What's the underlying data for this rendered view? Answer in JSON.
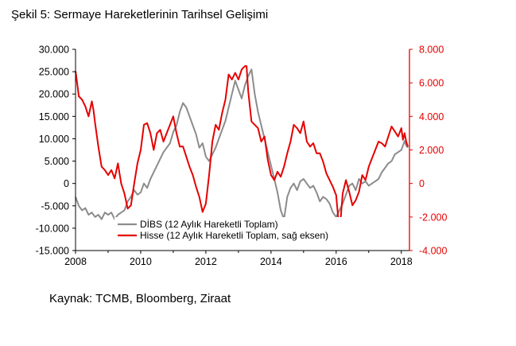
{
  "title": "Şekil 5: Sermaye Hareketlerinin Tarihsel Gelişimi",
  "source": "Kaynak: TCMB, Bloomberg, Ziraat",
  "chart_data": {
    "type": "line",
    "x_range": [
      2008,
      2018.25
    ],
    "x_ticks": [
      "2008",
      "2010",
      "2012",
      "2014",
      "2016",
      "2018"
    ],
    "x_tick_values": [
      2008,
      2010,
      2012,
      2014,
      2016,
      2018
    ],
    "y_left": {
      "range": [
        -15000,
        30000
      ],
      "ticks": [
        "30.000",
        "25.000",
        "20.000",
        "15.000",
        "10.000",
        "5.000",
        "0",
        "-5.000",
        "-10.000",
        "-15.000"
      ],
      "tick_values": [
        30000,
        25000,
        20000,
        15000,
        10000,
        5000,
        0,
        -5000,
        -10000,
        -15000
      ]
    },
    "y_right": {
      "range": [
        -4000,
        8000
      ],
      "ticks": [
        "8.000",
        "6.000",
        "4.000",
        "2.000",
        "0",
        "-2.000",
        "-4.000"
      ],
      "tick_values": [
        8000,
        6000,
        4000,
        2000,
        0,
        -2000,
        -4000
      ],
      "color": "#e60000"
    },
    "legend": {
      "placement": "bottom-center"
    },
    "series": [
      {
        "name": "DİBS (12 Aylık Hareketli Toplam)",
        "axis": "left",
        "color": "#8c8c8c",
        "points": [
          [
            2008.0,
            -3000
          ],
          [
            2008.1,
            -5000
          ],
          [
            2008.2,
            -6000
          ],
          [
            2008.3,
            -5500
          ],
          [
            2008.4,
            -7000
          ],
          [
            2008.5,
            -6500
          ],
          [
            2008.6,
            -7500
          ],
          [
            2008.7,
            -7000
          ],
          [
            2008.8,
            -8000
          ],
          [
            2008.9,
            -6500
          ],
          [
            2009.0,
            -7000
          ],
          [
            2009.1,
            -6500
          ],
          [
            2009.2,
            -8000
          ],
          [
            2009.3,
            -7000
          ],
          [
            2009.4,
            -6500
          ],
          [
            2009.5,
            -6000
          ],
          [
            2009.6,
            -4000
          ],
          [
            2009.7,
            -3000
          ],
          [
            2009.8,
            -1500
          ],
          [
            2009.9,
            -2500
          ],
          [
            2010.0,
            -2000
          ],
          [
            2010.1,
            0
          ],
          [
            2010.2,
            -1000
          ],
          [
            2010.3,
            1000
          ],
          [
            2010.4,
            2500
          ],
          [
            2010.5,
            4000
          ],
          [
            2010.6,
            5500
          ],
          [
            2010.7,
            7000
          ],
          [
            2010.8,
            8000
          ],
          [
            2010.9,
            9000
          ],
          [
            2011.0,
            11500
          ],
          [
            2011.1,
            13000
          ],
          [
            2011.2,
            16000
          ],
          [
            2011.3,
            18000
          ],
          [
            2011.4,
            17000
          ],
          [
            2011.5,
            15000
          ],
          [
            2011.6,
            13000
          ],
          [
            2011.7,
            11000
          ],
          [
            2011.8,
            8000
          ],
          [
            2011.9,
            9000
          ],
          [
            2012.0,
            6000
          ],
          [
            2012.1,
            5000
          ],
          [
            2012.2,
            6500
          ],
          [
            2012.3,
            8000
          ],
          [
            2012.4,
            10000
          ],
          [
            2012.5,
            12000
          ],
          [
            2012.6,
            14000
          ],
          [
            2012.7,
            17000
          ],
          [
            2012.8,
            20000
          ],
          [
            2012.9,
            23000
          ],
          [
            2013.0,
            21000
          ],
          [
            2013.1,
            19000
          ],
          [
            2013.2,
            22000
          ],
          [
            2013.3,
            24000
          ],
          [
            2013.4,
            25500
          ],
          [
            2013.5,
            20000
          ],
          [
            2013.6,
            16000
          ],
          [
            2013.7,
            13000
          ],
          [
            2013.8,
            10000
          ],
          [
            2013.9,
            7000
          ],
          [
            2014.0,
            4000
          ],
          [
            2014.1,
            1000
          ],
          [
            2014.2,
            -2000
          ],
          [
            2014.3,
            -6000
          ],
          [
            2014.4,
            -8000
          ],
          [
            2014.5,
            -3000
          ],
          [
            2014.6,
            -1000
          ],
          [
            2014.7,
            0
          ],
          [
            2014.8,
            -1500
          ],
          [
            2014.9,
            500
          ],
          [
            2015.0,
            1000
          ],
          [
            2015.1,
            0
          ],
          [
            2015.2,
            -1000
          ],
          [
            2015.3,
            -500
          ],
          [
            2015.4,
            -2000
          ],
          [
            2015.5,
            -4000
          ],
          [
            2015.6,
            -3000
          ],
          [
            2015.7,
            -3500
          ],
          [
            2015.8,
            -4500
          ],
          [
            2015.9,
            -6500
          ],
          [
            2016.0,
            -7500
          ],
          [
            2016.1,
            -6000
          ],
          [
            2016.2,
            -4500
          ],
          [
            2016.3,
            -2500
          ],
          [
            2016.4,
            -500
          ],
          [
            2016.5,
            0
          ],
          [
            2016.6,
            -1500
          ],
          [
            2016.7,
            1000
          ],
          [
            2016.8,
            0
          ],
          [
            2016.9,
            500
          ],
          [
            2017.0,
            -500
          ],
          [
            2017.1,
            0
          ],
          [
            2017.2,
            500
          ],
          [
            2017.3,
            1000
          ],
          [
            2017.4,
            2500
          ],
          [
            2017.5,
            3500
          ],
          [
            2017.6,
            4500
          ],
          [
            2017.7,
            5000
          ],
          [
            2017.8,
            6500
          ],
          [
            2017.9,
            7000
          ],
          [
            2018.0,
            7500
          ],
          [
            2018.1,
            9500
          ],
          [
            2018.15,
            8500
          ],
          [
            2018.2,
            8000
          ]
        ]
      },
      {
        "name": "Hisse (12 Aylık Hareketli Toplam, sağ eksen)",
        "axis": "right",
        "color": "#e60000",
        "points": [
          [
            2008.0,
            6700
          ],
          [
            2008.05,
            6000
          ],
          [
            2008.1,
            5200
          ],
          [
            2008.2,
            5000
          ],
          [
            2008.3,
            4600
          ],
          [
            2008.4,
            4000
          ],
          [
            2008.5,
            4900
          ],
          [
            2008.55,
            4400
          ],
          [
            2008.6,
            3600
          ],
          [
            2008.7,
            2200
          ],
          [
            2008.8,
            1000
          ],
          [
            2008.9,
            800
          ],
          [
            2009.0,
            500
          ],
          [
            2009.1,
            800
          ],
          [
            2009.2,
            300
          ],
          [
            2009.3,
            1200
          ],
          [
            2009.4,
            0
          ],
          [
            2009.5,
            -600
          ],
          [
            2009.6,
            -1500
          ],
          [
            2009.7,
            -1300
          ],
          [
            2009.8,
            0
          ],
          [
            2009.9,
            1200
          ],
          [
            2010.0,
            2000
          ],
          [
            2010.1,
            3500
          ],
          [
            2010.2,
            3600
          ],
          [
            2010.3,
            3000
          ],
          [
            2010.4,
            2000
          ],
          [
            2010.5,
            3000
          ],
          [
            2010.6,
            3200
          ],
          [
            2010.7,
            2500
          ],
          [
            2010.8,
            3000
          ],
          [
            2010.9,
            3500
          ],
          [
            2011.0,
            4000
          ],
          [
            2011.1,
            3000
          ],
          [
            2011.2,
            2200
          ],
          [
            2011.3,
            2200
          ],
          [
            2011.4,
            1600
          ],
          [
            2011.5,
            1000
          ],
          [
            2011.6,
            500
          ],
          [
            2011.7,
            -200
          ],
          [
            2011.8,
            -800
          ],
          [
            2011.9,
            -1700
          ],
          [
            2012.0,
            -1200
          ],
          [
            2012.1,
            500
          ],
          [
            2012.2,
            2500
          ],
          [
            2012.3,
            3500
          ],
          [
            2012.4,
            3200
          ],
          [
            2012.5,
            4200
          ],
          [
            2012.6,
            5000
          ],
          [
            2012.7,
            6500
          ],
          [
            2012.8,
            6200
          ],
          [
            2012.9,
            6600
          ],
          [
            2013.0,
            6200
          ],
          [
            2013.1,
            6800
          ],
          [
            2013.2,
            7000
          ],
          [
            2013.25,
            7000
          ],
          [
            2013.3,
            5500
          ],
          [
            2013.4,
            3700
          ],
          [
            2013.5,
            3500
          ],
          [
            2013.6,
            3300
          ],
          [
            2013.7,
            2500
          ],
          [
            2013.8,
            2800
          ],
          [
            2013.9,
            1400
          ],
          [
            2014.0,
            500
          ],
          [
            2014.1,
            200
          ],
          [
            2014.2,
            700
          ],
          [
            2014.3,
            400
          ],
          [
            2014.4,
            1000
          ],
          [
            2014.5,
            1800
          ],
          [
            2014.6,
            2500
          ],
          [
            2014.7,
            3500
          ],
          [
            2014.8,
            3300
          ],
          [
            2014.9,
            3000
          ],
          [
            2015.0,
            3700
          ],
          [
            2015.1,
            2500
          ],
          [
            2015.2,
            2200
          ],
          [
            2015.3,
            2400
          ],
          [
            2015.4,
            1800
          ],
          [
            2015.5,
            1800
          ],
          [
            2015.6,
            1300
          ],
          [
            2015.7,
            600
          ],
          [
            2015.8,
            200
          ],
          [
            2015.9,
            -200
          ],
          [
            2016.0,
            -700
          ],
          [
            2016.05,
            -1800
          ],
          [
            2016.1,
            -3000
          ],
          [
            2016.15,
            -1800
          ],
          [
            2016.2,
            -600
          ],
          [
            2016.3,
            200
          ],
          [
            2016.4,
            -500
          ],
          [
            2016.5,
            -1300
          ],
          [
            2016.6,
            -1000
          ],
          [
            2016.7,
            -500
          ],
          [
            2016.8,
            500
          ],
          [
            2016.9,
            200
          ],
          [
            2017.0,
            1000
          ],
          [
            2017.1,
            1500
          ],
          [
            2017.2,
            2000
          ],
          [
            2017.3,
            2500
          ],
          [
            2017.4,
            2400
          ],
          [
            2017.5,
            2200
          ],
          [
            2017.6,
            2800
          ],
          [
            2017.7,
            3400
          ],
          [
            2017.8,
            3100
          ],
          [
            2017.9,
            2800
          ],
          [
            2018.0,
            3300
          ],
          [
            2018.05,
            2600
          ],
          [
            2018.1,
            3000
          ],
          [
            2018.15,
            2500
          ],
          [
            2018.2,
            2200
          ]
        ]
      }
    ]
  }
}
